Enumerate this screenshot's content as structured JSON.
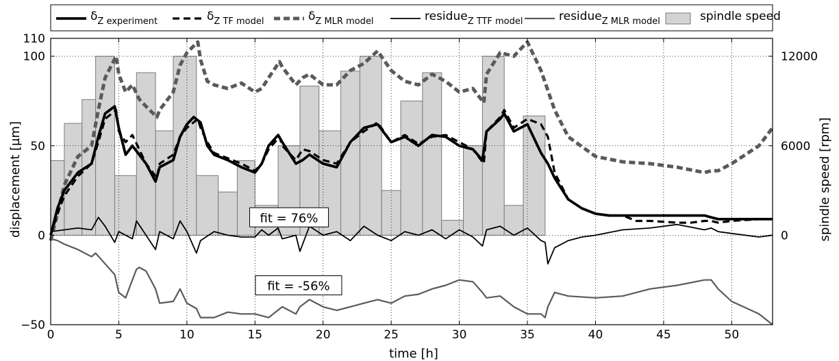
{
  "chart_data": {
    "type": "line",
    "xlabel": "time [h]",
    "ylabel": "displacement [µm]",
    "y2label": "spindle speed [rpm]",
    "xlim": [
      0,
      53
    ],
    "ylim": [
      -50,
      110
    ],
    "y2lim": [
      0,
      12000
    ],
    "xticks": [
      0,
      5,
      10,
      15,
      20,
      25,
      30,
      35,
      40,
      45,
      50
    ],
    "yticks": [
      -50,
      0,
      50,
      100,
      110
    ],
    "y2ticks": [
      0,
      6000,
      12000
    ],
    "grid": true,
    "legend_position": "top",
    "legend": [
      {
        "base": "δ",
        "sub": "Z experiment",
        "style": "thick-solid"
      },
      {
        "base": "δ",
        "sub": "Z TF model",
        "style": "thick-dashed"
      },
      {
        "base": "δ",
        "sub": "Z MLR model",
        "style": "gray-dashed"
      },
      {
        "base": "residue",
        "sub": "Z TTF model",
        "style": "thin-solid"
      },
      {
        "base": "residue",
        "sub": "Z MLR model",
        "style": "gray-thin"
      },
      {
        "base": "spindle speed",
        "sub": "",
        "style": "gray-fill"
      }
    ],
    "annotations": [
      {
        "text": "fit = 76%",
        "x": 17.5,
        "y": 10
      },
      {
        "text": "fit = -56%",
        "x": 18.2,
        "y": -28
      }
    ],
    "spindle_speed_rpm": [
      {
        "t0": 0,
        "t1": 1.0,
        "rpm": 5000
      },
      {
        "t0": 1.0,
        "t1": 2.3,
        "rpm": 7500
      },
      {
        "t0": 2.3,
        "t1": 3.3,
        "rpm": 9100
      },
      {
        "t0": 3.3,
        "t1": 4.7,
        "rpm": 12000
      },
      {
        "t0": 4.7,
        "t1": 6.3,
        "rpm": 4000
      },
      {
        "t0": 6.3,
        "t1": 7.7,
        "rpm": 10900
      },
      {
        "t0": 7.7,
        "t1": 9.0,
        "rpm": 7000
      },
      {
        "t0": 9.0,
        "t1": 10.7,
        "rpm": 12000
      },
      {
        "t0": 10.7,
        "t1": 12.3,
        "rpm": 4000
      },
      {
        "t0": 12.3,
        "t1": 13.7,
        "rpm": 2900
      },
      {
        "t0": 13.7,
        "t1": 15.0,
        "rpm": 5000
      },
      {
        "t0": 15.0,
        "t1": 16.7,
        "rpm": 2000
      },
      {
        "t0": 16.7,
        "t1": 18.3,
        "rpm": 6000
      },
      {
        "t0": 18.3,
        "t1": 19.7,
        "rpm": 10000
      },
      {
        "t0": 19.7,
        "t1": 21.3,
        "rpm": 7000
      },
      {
        "t0": 21.3,
        "t1": 22.7,
        "rpm": 11000
      },
      {
        "t0": 22.7,
        "t1": 24.3,
        "rpm": 12000
      },
      {
        "t0": 24.3,
        "t1": 25.7,
        "rpm": 3000
      },
      {
        "t0": 25.7,
        "t1": 27.3,
        "rpm": 9000
      },
      {
        "t0": 27.3,
        "t1": 28.7,
        "rpm": 10900
      },
      {
        "t0": 28.7,
        "t1": 30.3,
        "rpm": 1000
      },
      {
        "t0": 30.3,
        "t1": 31.7,
        "rpm": 6000
      },
      {
        "t0": 31.7,
        "t1": 33.3,
        "rpm": 12000
      },
      {
        "t0": 33.3,
        "t1": 34.7,
        "rpm": 2000
      },
      {
        "t0": 34.7,
        "t1": 36.3,
        "rpm": 8000
      }
    ],
    "series": [
      {
        "name": "δZ experiment",
        "x": [
          0,
          0.5,
          1,
          2,
          3,
          3.5,
          4,
          4.7,
          5,
          5.5,
          6,
          6.5,
          7,
          7.7,
          8,
          9,
          9.5,
          10,
          10.5,
          11,
          11.5,
          12,
          13,
          14,
          15,
          15.5,
          16,
          16.7,
          17,
          18,
          18.5,
          19,
          20,
          21,
          22,
          23,
          24,
          25,
          26,
          27,
          28,
          29,
          30,
          31,
          31.7,
          32,
          33,
          33.3,
          34,
          35,
          36,
          36.5,
          37,
          38,
          39,
          40,
          41,
          42,
          44,
          46,
          48,
          48.5,
          49,
          50,
          52,
          53
        ],
        "y": [
          0,
          15,
          25,
          35,
          40,
          55,
          68,
          72,
          60,
          45,
          50,
          45,
          40,
          30,
          38,
          42,
          55,
          62,
          66,
          63,
          50,
          45,
          42,
          38,
          35,
          40,
          50,
          56,
          52,
          40,
          42,
          45,
          40,
          38,
          52,
          60,
          62,
          52,
          55,
          50,
          56,
          55,
          50,
          48,
          42,
          58,
          65,
          68,
          58,
          62,
          46,
          40,
          32,
          20,
          15,
          12,
          11,
          11,
          11,
          11,
          11,
          10,
          9,
          9,
          9,
          9
        ]
      },
      {
        "name": "δZ TF model",
        "x": [
          0,
          0.5,
          1,
          2,
          3,
          3.5,
          4,
          4.8,
          5,
          5.5,
          6,
          6.5,
          7,
          7.8,
          8,
          9,
          9.5,
          10,
          10.8,
          11,
          11.5,
          12,
          13,
          14,
          15,
          15.5,
          16,
          16.8,
          17,
          18,
          18.5,
          19,
          20,
          21,
          22,
          23,
          24,
          25,
          26,
          27,
          28,
          29,
          30,
          31,
          31.8,
          32,
          33,
          33.3,
          34,
          35,
          36,
          36.5,
          37,
          38,
          39,
          40,
          41,
          42,
          43,
          44,
          46,
          47,
          48,
          48.5,
          49,
          50,
          52,
          53
        ],
        "y": [
          0,
          12,
          22,
          33,
          40,
          52,
          65,
          70,
          58,
          52,
          56,
          48,
          40,
          32,
          40,
          45,
          55,
          60,
          65,
          60,
          52,
          46,
          43,
          40,
          36,
          40,
          48,
          55,
          50,
          42,
          48,
          47,
          42,
          40,
          52,
          58,
          63,
          52,
          56,
          51,
          55,
          56,
          52,
          48,
          40,
          58,
          66,
          70,
          60,
          65,
          62,
          55,
          35,
          20,
          15,
          12,
          11,
          11,
          8,
          8,
          7,
          7,
          8,
          8,
          7,
          8,
          9,
          9
        ]
      },
      {
        "name": "δZ MLR model",
        "x": [
          0,
          0.5,
          1,
          2,
          3,
          3.5,
          4,
          4.8,
          5,
          5.5,
          6,
          6.5,
          7,
          7.8,
          8,
          9,
          9.5,
          10,
          10.8,
          11,
          11.5,
          12,
          13,
          14,
          15,
          15.5,
          16,
          16.8,
          17,
          18,
          18.5,
          19,
          20,
          21,
          22,
          23,
          24,
          25,
          26,
          27,
          28,
          29,
          30,
          31,
          31.8,
          32,
          33,
          34,
          35,
          36,
          37,
          38,
          40,
          42,
          44,
          46,
          48,
          48.5,
          49,
          50,
          52,
          53
        ],
        "y": [
          -3,
          12,
          28,
          44,
          50,
          70,
          88,
          100,
          90,
          80,
          84,
          76,
          72,
          66,
          70,
          80,
          95,
          102,
          108,
          98,
          86,
          84,
          82,
          85,
          80,
          82,
          88,
          97,
          94,
          84,
          88,
          90,
          84,
          84,
          92,
          96,
          103,
          92,
          86,
          84,
          90,
          86,
          80,
          82,
          74,
          90,
          102,
          100,
          108,
          92,
          70,
          55,
          44,
          41,
          40,
          38,
          35,
          36,
          36,
          40,
          50,
          60
        ]
      },
      {
        "name": "residue Z TTF model",
        "x": [
          0,
          1,
          2,
          3,
          3.5,
          4,
          4.7,
          5,
          6,
          6.3,
          7,
          7.7,
          8,
          9,
          9.5,
          10,
          10.7,
          11,
          12,
          13,
          14,
          15,
          15.5,
          16,
          16.7,
          17,
          18,
          18.3,
          19,
          20,
          21,
          22,
          23,
          24,
          25,
          26,
          27,
          28,
          29,
          30,
          31,
          31.7,
          32,
          33,
          34,
          35,
          36,
          36.3,
          36.5,
          37,
          38,
          39,
          40,
          42,
          44,
          46,
          48,
          48.5,
          49,
          50,
          52,
          53
        ],
        "y": [
          2,
          3,
          4,
          3,
          10,
          5,
          -4,
          2,
          -2,
          8,
          0,
          -8,
          2,
          -2,
          8,
          2,
          -10,
          -3,
          2,
          0,
          -1,
          -1,
          3,
          0,
          4,
          -2,
          0,
          -9,
          5,
          0,
          2,
          -3,
          5,
          0,
          -3,
          2,
          0,
          3,
          -2,
          3,
          -1,
          -6,
          3,
          5,
          0,
          4,
          -3,
          -4,
          -16,
          -7,
          -3,
          -1,
          0,
          3,
          4,
          6,
          3,
          4,
          2,
          1,
          -1,
          0
        ]
      },
      {
        "name": "residue Z MLR model",
        "x": [
          0,
          0.5,
          1,
          2,
          3,
          3.3,
          4,
          4.7,
          5,
          5.5,
          6,
          6.3,
          6.5,
          7,
          7.7,
          8,
          9,
          9.5,
          10,
          10.7,
          11,
          12,
          13,
          14,
          15,
          16,
          17,
          18,
          18.3,
          19,
          20,
          21,
          22,
          23,
          24,
          25,
          26,
          27,
          28,
          29,
          30,
          31,
          31.7,
          32,
          33,
          34,
          35,
          36,
          36.3,
          36.5,
          37,
          38,
          40,
          42,
          44,
          46,
          48,
          48.5,
          49,
          50,
          52,
          53
        ],
        "y": [
          -2,
          -3,
          -5,
          -8,
          -12,
          -10,
          -16,
          -22,
          -32,
          -35,
          -25,
          -19,
          -18,
          -20,
          -30,
          -38,
          -37,
          -30,
          -38,
          -41,
          -46,
          -46,
          -43,
          -44,
          -44,
          -46,
          -40,
          -44,
          -40,
          -36,
          -40,
          -42,
          -40,
          -38,
          -36,
          -38,
          -34,
          -33,
          -30,
          -28,
          -25,
          -26,
          -32,
          -35,
          -34,
          -40,
          -44,
          -44,
          -46,
          -40,
          -32,
          -34,
          -35,
          -34,
          -30,
          -28,
          -25,
          -25,
          -30,
          -37,
          -44,
          -50
        ]
      }
    ]
  }
}
